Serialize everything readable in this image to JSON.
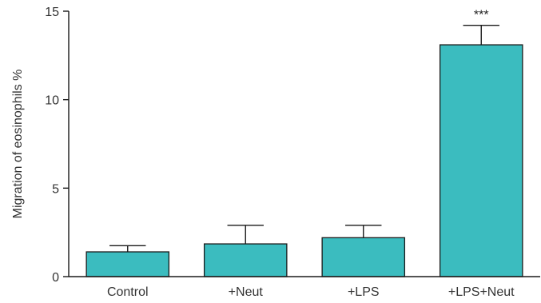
{
  "chart_data": {
    "type": "bar",
    "categories": [
      "Control",
      "+Neut",
      "+LPS",
      "+LPS+Neut"
    ],
    "values": [
      1.4,
      1.85,
      2.2,
      13.1
    ],
    "error": [
      0.35,
      1.05,
      0.7,
      1.1
    ],
    "annotations": [
      "",
      "",
      "",
      "***"
    ],
    "title": "",
    "xlabel": "",
    "ylabel": "Migration of eosinophils %",
    "ylim": [
      0,
      15
    ],
    "yticks": [
      0,
      5,
      10,
      15
    ],
    "grid": false,
    "legend": "none",
    "bar_color": "#3bbcbf"
  }
}
